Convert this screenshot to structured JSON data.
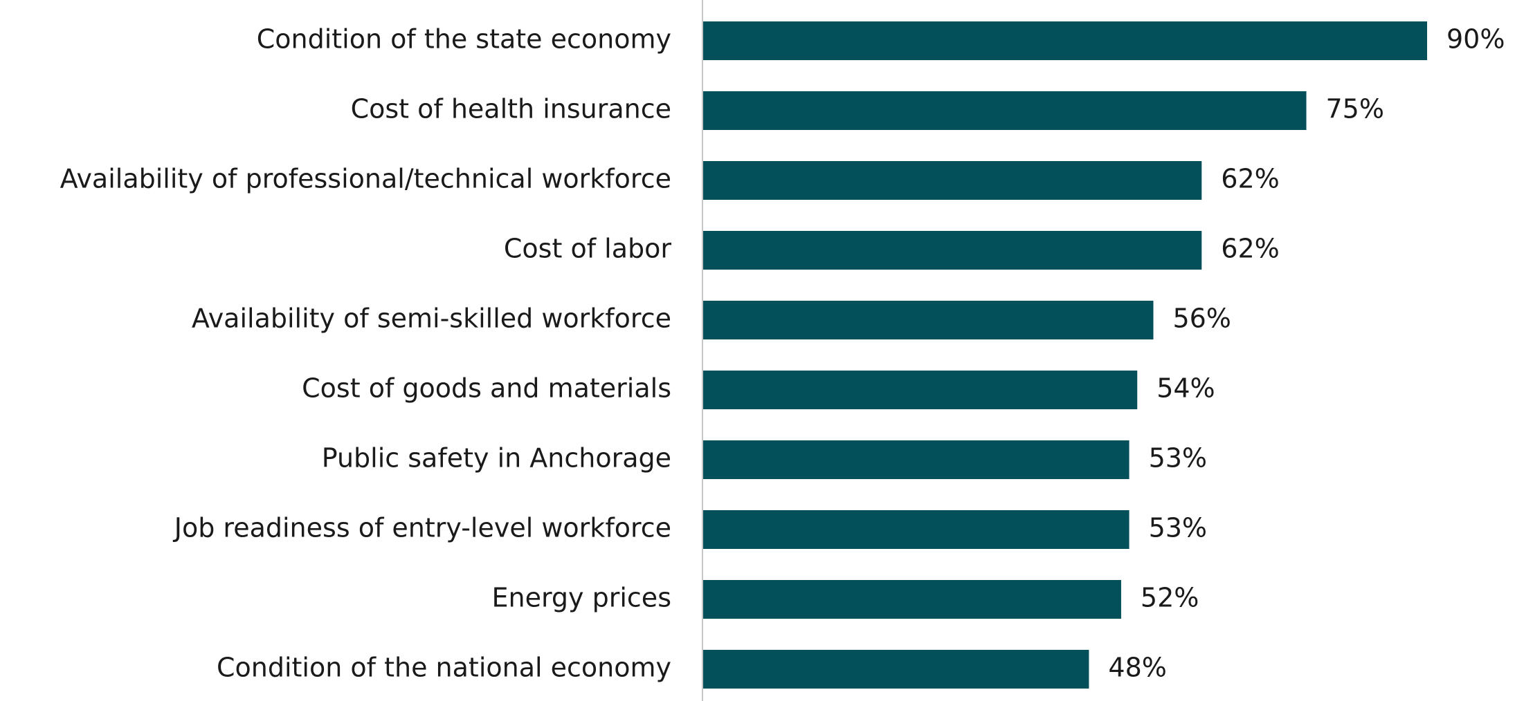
{
  "chart_data": {
    "type": "bar",
    "orientation": "horizontal",
    "categories": [
      "Condition of the state economy",
      "Cost of health insurance",
      "Availability of professional/technical workforce",
      "Cost of labor",
      "Availability of semi-skilled workforce",
      "Cost of goods and materials",
      "Public safety in Anchorage",
      "Job readiness of entry-level workforce",
      "Energy prices",
      "Condition of the national economy"
    ],
    "values": [
      90,
      75,
      62,
      62,
      56,
      54,
      53,
      53,
      52,
      48
    ],
    "value_labels": [
      "90%",
      "75%",
      "62%",
      "62%",
      "56%",
      "54%",
      "53%",
      "53%",
      "52%",
      "48%"
    ],
    "color": "#034f5a"
  }
}
